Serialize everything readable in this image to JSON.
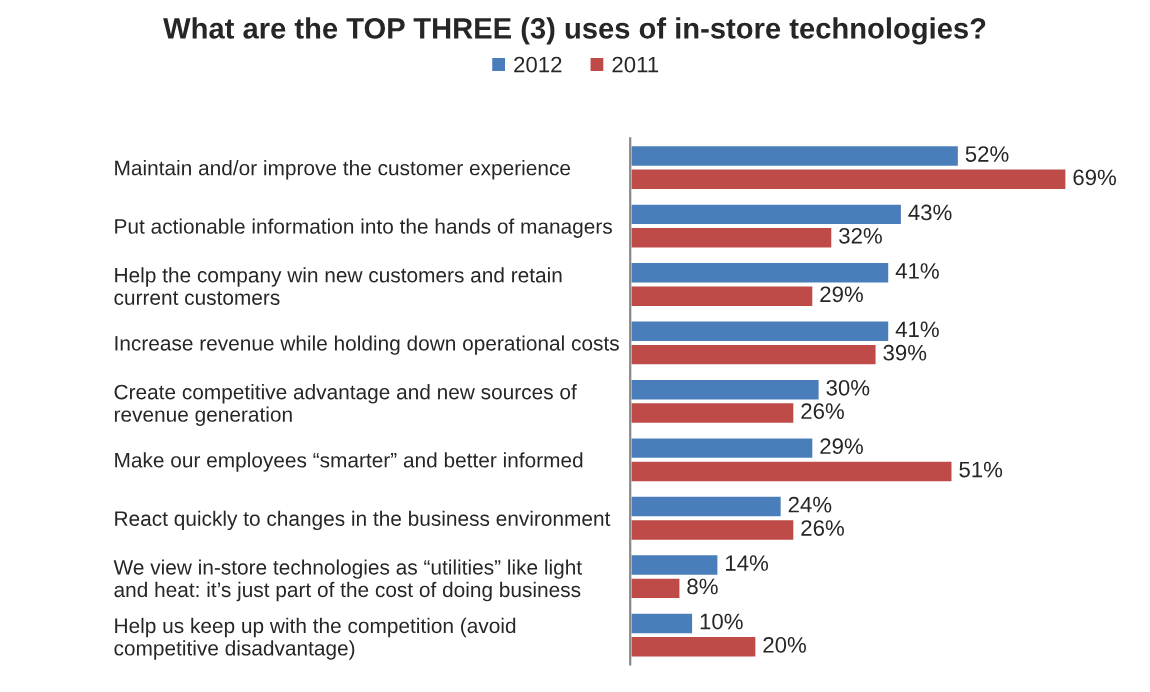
{
  "chart_data": {
    "type": "bar",
    "orientation": "horizontal",
    "title": "What are the TOP THREE (3) uses of in-store technologies?",
    "categories": [
      "Maintain and/or improve the customer experience",
      "Put actionable information into the hands of managers",
      "Help the company win new customers and retain\ncurrent customers",
      "Increase revenue while holding down operational costs",
      "Create competitive advantage and new sources of\nrevenue generation",
      "Make our employees “smarter” and better informed",
      "React quickly to changes in the business environment",
      "We view in-store technologies as “utilities” like light\nand heat: it’s just part of the cost of doing business",
      "Help us keep up with the competition (avoid\ncompetitive disadvantage)"
    ],
    "series": [
      {
        "name": "2012",
        "color": "#4a7ebb",
        "values": [
          52,
          43,
          41,
          41,
          30,
          29,
          24,
          14,
          10
        ],
        "value_labels": [
          "52%",
          "43%",
          "41%",
          "41%",
          "30%",
          "29%",
          "24%",
          "14%",
          "10%"
        ]
      },
      {
        "name": "2011",
        "color": "#be4b48",
        "values": [
          69,
          32,
          29,
          39,
          26,
          51,
          26,
          8,
          20
        ],
        "value_labels": [
          "69%",
          "32%",
          "29%",
          "39%",
          "26%",
          "51%",
          "26%",
          "8%",
          "20%"
        ]
      }
    ],
    "tick_labels": "y",
    "grid": false,
    "legend": "top"
  }
}
